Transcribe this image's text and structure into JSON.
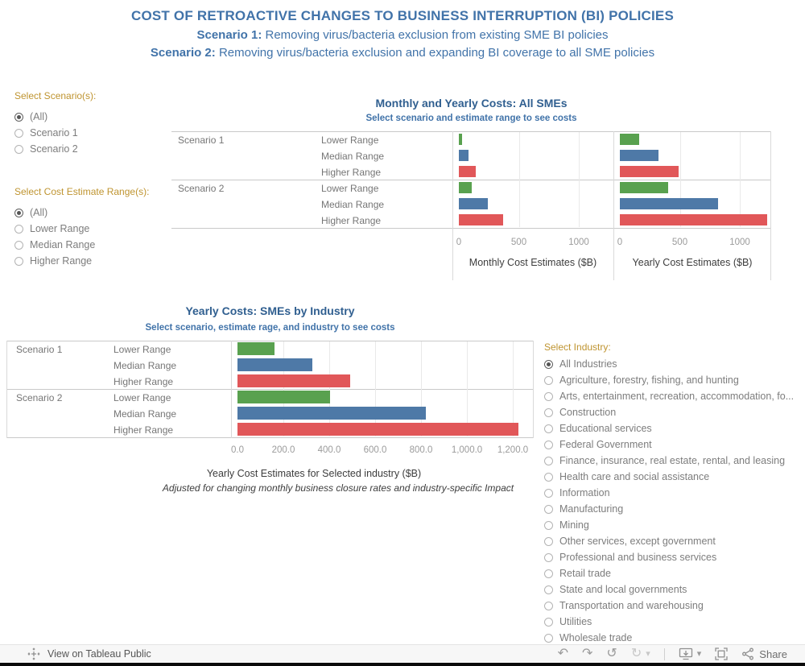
{
  "header": {
    "title": "COST OF RETROACTIVE CHANGES TO BUSINESS INTERRUPTION (BI) POLICIES",
    "scenario1_label": "Scenario 1:",
    "scenario1_text": " Removing virus/bacteria exclusion from existing SME BI policies",
    "scenario2_label": "Scenario 2:",
    "scenario2_text": " Removing virus/bacteria exclusion and expanding BI coverage to all SME policies"
  },
  "filters": {
    "scenario": {
      "label": "Select Scenario(s):",
      "options": [
        {
          "label": "(All)",
          "selected": true
        },
        {
          "label": "Scenario 1",
          "selected": false
        },
        {
          "label": "Scenario 2",
          "selected": false
        }
      ]
    },
    "range": {
      "label": "Select Cost Estimate Range(s):",
      "options": [
        {
          "label": "(All)",
          "selected": true
        },
        {
          "label": "Lower Range",
          "selected": false
        },
        {
          "label": "Median Range",
          "selected": false
        },
        {
          "label": "Higher Range",
          "selected": false
        }
      ]
    },
    "industry": {
      "label": "Select Industry:",
      "options": [
        {
          "label": "All Industries",
          "selected": true
        },
        {
          "label": "Agriculture, forestry, fishing, and hunting",
          "selected": false
        },
        {
          "label": "Arts, entertainment, recreation, accommodation, fo...",
          "selected": false
        },
        {
          "label": "Construction",
          "selected": false
        },
        {
          "label": "Educational services",
          "selected": false
        },
        {
          "label": "Federal Government",
          "selected": false
        },
        {
          "label": "Finance, insurance, real estate, rental, and leasing",
          "selected": false
        },
        {
          "label": "Health care and social assistance",
          "selected": false
        },
        {
          "label": "Information",
          "selected": false
        },
        {
          "label": "Manufacturing",
          "selected": false
        },
        {
          "label": "Mining",
          "selected": false
        },
        {
          "label": "Other services, except government",
          "selected": false
        },
        {
          "label": "Professional and business services",
          "selected": false
        },
        {
          "label": "Retail trade",
          "selected": false
        },
        {
          "label": "State and local governments",
          "selected": false
        },
        {
          "label": "Transportation and warehousing",
          "selected": false
        },
        {
          "label": "Utilities",
          "selected": false
        },
        {
          "label": "Wholesale trade",
          "selected": false
        }
      ]
    }
  },
  "chart_data": [
    {
      "type": "bar",
      "orientation": "horizontal",
      "title": "Monthly and Yearly Costs: All SMEs",
      "subtitle": "Select scenario and estimate range to see costs",
      "row_groups": [
        "Scenario 1",
        "Scenario 2"
      ],
      "categories": [
        "Lower Range",
        "Median Range",
        "Higher Range"
      ],
      "panels": [
        {
          "xlabel": "Monthly Cost Estimates ($B)",
          "ticks": [
            0,
            500,
            1000
          ],
          "xlim": [
            0,
            1250
          ],
          "series": [
            {
              "name": "Scenario 1",
              "values": [
                30,
                80,
                140
              ]
            },
            {
              "name": "Scenario 2",
              "values": [
                110,
                240,
                370
              ]
            }
          ]
        },
        {
          "xlabel": "Yearly Cost Estimates ($B)",
          "ticks": [
            0,
            500,
            1000
          ],
          "xlim": [
            0,
            1250
          ],
          "series": [
            {
              "name": "Scenario 1",
              "values": [
                160,
                325,
                490
              ]
            },
            {
              "name": "Scenario 2",
              "values": [
                405,
                820,
                1225
              ]
            }
          ]
        }
      ],
      "bar_colors": {
        "Lower Range": "#59a14f",
        "Median Range": "#4e79a7",
        "Higher Range": "#e15759"
      },
      "grid": true,
      "legend": "none"
    },
    {
      "type": "bar",
      "orientation": "horizontal",
      "title": "Yearly Costs: SMEs by Industry",
      "subtitle": "Select scenario, estimate rage, and industry to see costs",
      "row_groups": [
        "Scenario 1",
        "Scenario 2"
      ],
      "categories": [
        "Lower Range",
        "Median Range",
        "Higher Range"
      ],
      "series": [
        {
          "name": "Scenario 1",
          "values": [
            160,
            325,
            490
          ]
        },
        {
          "name": "Scenario 2",
          "values": [
            405,
            820,
            1225
          ]
        }
      ],
      "ticks": [
        "0.0",
        "200.0",
        "400.0",
        "600.0",
        "800.0",
        "1,000.0",
        "1,200.0"
      ],
      "tick_values": [
        0,
        200,
        400,
        600,
        800,
        1000,
        1200
      ],
      "xlim": [
        0,
        1280
      ],
      "xlabel": "Yearly Cost Estimates for Selected industry ($B)",
      "note": "Adjusted for changing monthly business closure rates and industry-specific Impact",
      "bar_colors": {
        "Lower Range": "#59a14f",
        "Median Range": "#4e79a7",
        "Higher Range": "#e15759"
      },
      "grid": true,
      "legend": "none"
    }
  ],
  "toolbar": {
    "view_label": "View on Tableau Public",
    "share_label": "Share",
    "icons": {
      "undo": "↶",
      "redo": "↷",
      "revert": "↺",
      "refresh": "↻",
      "caret": "▾"
    }
  },
  "colors": {
    "header_blue": "#4173a9",
    "chart_title_blue": "#305f90",
    "filter_label_gold": "#bf9430",
    "bar_green": "#59a14f",
    "bar_blue": "#4e79a7",
    "bar_red": "#e15759"
  }
}
